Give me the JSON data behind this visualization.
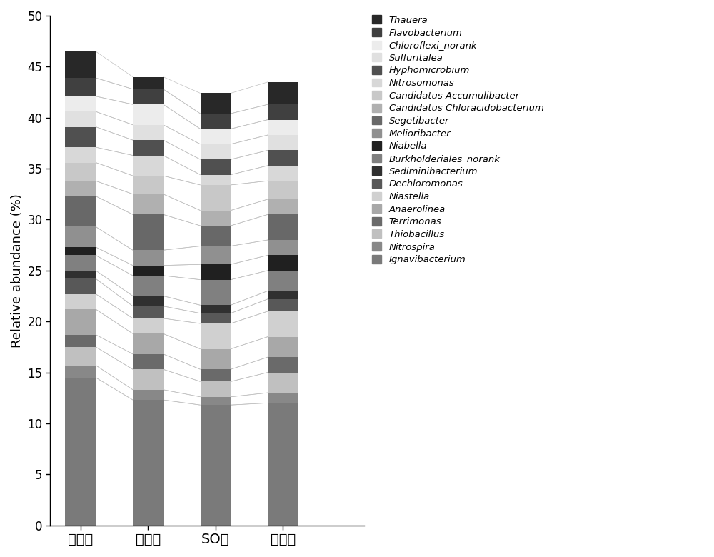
{
  "categories": [
    "厘氧区",
    "缺氧区",
    "SO区",
    "好氧区"
  ],
  "species_bottom_to_top": [
    "Ignavibacterium",
    "Nitrospira",
    "Thiobacillus",
    "Terrimonas",
    "Anaerolinea",
    "Niastella",
    "Dechloromonas",
    "Sediminibacterium",
    "Burkholderiales_norank",
    "Niabella",
    "Melioribacter",
    "Segetibacter",
    "Candidatus Chloracidobacterium",
    "Candidatus Accumulibacter",
    "Nitrosomonas",
    "Hyphomicrobium",
    "Sulfuritalea",
    "Chloroflexi_norank",
    "Flavobacterium",
    "Thauera"
  ],
  "colors_bottom_to_top": [
    "#7a7a7a",
    "#888888",
    "#c0c0c0",
    "#6a6a6a",
    "#a8a8a8",
    "#d0d0d0",
    "#585858",
    "#303030",
    "#808080",
    "#202020",
    "#909090",
    "#686868",
    "#b0b0b0",
    "#c8c8c8",
    "#d8d8d8",
    "#505050",
    "#e0e0e0",
    "#ececec",
    "#404040",
    "#282828"
  ],
  "values": {
    "厘氧区": [
      14.5,
      1.2,
      1.8,
      1.2,
      2.5,
      1.5,
      1.5,
      0.8,
      1.5,
      0.8,
      2.0,
      3.0,
      1.5,
      1.8,
      1.5,
      2.0,
      1.5,
      1.5,
      1.8,
      2.6
    ],
    "缺氧区": [
      12.3,
      1.0,
      2.0,
      1.5,
      2.0,
      1.5,
      1.2,
      1.0,
      2.0,
      1.0,
      1.5,
      3.5,
      2.0,
      1.8,
      2.0,
      1.5,
      1.5,
      2.0,
      1.5,
      1.2
    ],
    "SO区": [
      11.8,
      0.8,
      1.5,
      1.2,
      2.0,
      2.5,
      1.0,
      0.8,
      2.5,
      1.5,
      1.8,
      2.0,
      1.5,
      2.5,
      1.0,
      1.5,
      1.5,
      1.5,
      1.5,
      2.0
    ],
    "好氧区": [
      12.0,
      1.0,
      2.0,
      1.5,
      2.0,
      2.5,
      1.2,
      0.8,
      2.0,
      1.5,
      1.5,
      2.5,
      1.5,
      1.8,
      1.5,
      1.5,
      1.5,
      1.5,
      1.5,
      2.2
    ]
  },
  "ylim": [
    0,
    50
  ],
  "yticks": [
    0,
    5,
    10,
    15,
    20,
    25,
    30,
    35,
    40,
    45,
    50
  ],
  "ylabel": "Relative abundance (%)",
  "bar_width": 0.45,
  "x_positions": [
    1,
    2,
    3,
    4
  ],
  "figsize": [
    10.0,
    7.8
  ],
  "dpi": 100,
  "line_color": "#c0c0c0",
  "line_width": 0.5
}
